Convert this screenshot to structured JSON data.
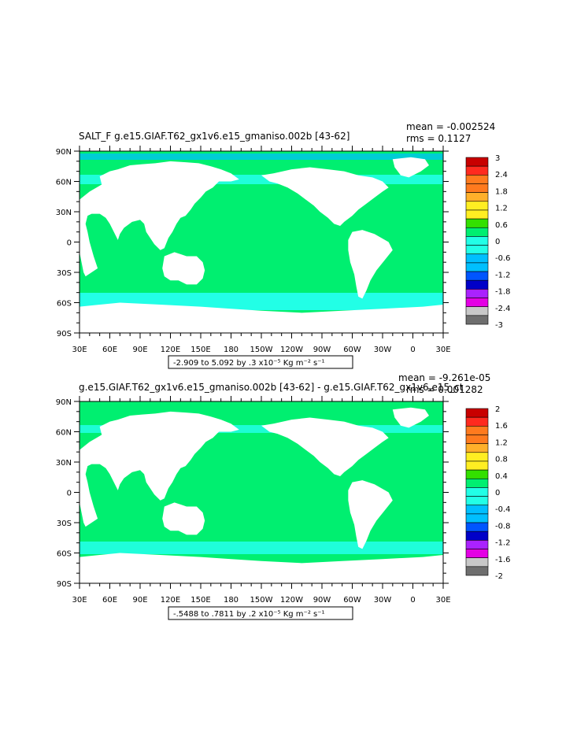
{
  "palette": {
    "c_pos3": "#c80000",
    "c_pos2": "#ff2a1f",
    "c_pos18": "#ff7a1e",
    "c_pos12": "#ffb02a",
    "c_pos06": "#ffee22",
    "c_pos0": "#33e000",
    "c_zero": "#00ef70",
    "c_neg06": "#22ffe6",
    "c_neg12": "#00bfff",
    "c_neg18": "#0055ff",
    "c_neg24": "#0000c8",
    "c_neg30": "#aa22ff",
    "c_neg36": "#e400e4",
    "c_gray": "#c8c8c8",
    "c_dark": "#6e6e6e",
    "land": "#ffffff"
  },
  "chart_data": [
    {
      "type": "heatmap",
      "title": "SALT_F  g.e15.GIAF.T62_gx1v6.e15_gmaniso.002b  [43-62]",
      "stats": [
        "mean = -0.002524",
        "rms = 0.1127"
      ],
      "xlabel": "",
      "ylabel": "",
      "xticks": [
        "30E",
        "60E",
        "90E",
        "120E",
        "150E",
        "180",
        "150W",
        "120W",
        "90W",
        "60W",
        "30W",
        "0",
        "30E"
      ],
      "yticks": [
        "90N",
        "60N",
        "30N",
        "0",
        "30S",
        "60S",
        "90S"
      ],
      "range_note": "-2.909 to 5.092 by .3 x10⁻⁵ Kg m⁻² s⁻¹",
      "colorbar_labels": [
        "3",
        "2.4",
        "1.8",
        "1.2",
        "0.6",
        "0",
        "-0.6",
        "-1.2",
        "-1.8",
        "-2.4",
        "-3"
      ],
      "ocean_base_value": 0
    },
    {
      "type": "heatmap",
      "title": "g.e15.GIAF.T62_gx1v6.e15_gmaniso.002b [43-62] - g.e15.GIAF.T62_gx1v6.e15_ct",
      "stats": [
        "mean = -9.261e-05",
        "rms = 0.001282"
      ],
      "xlabel": "",
      "ylabel": "",
      "xticks": [
        "30E",
        "60E",
        "90E",
        "120E",
        "150E",
        "180",
        "150W",
        "120W",
        "90W",
        "60W",
        "30W",
        "0",
        "30E"
      ],
      "yticks": [
        "90N",
        "60N",
        "30N",
        "0",
        "30S",
        "60S",
        "90S"
      ],
      "range_note": "-.5488 to .7811 by .2 x10⁻⁵ Kg m⁻² s⁻¹",
      "colorbar_labels": [
        "2",
        "1.6",
        "1.2",
        "0.8",
        "0.4",
        "0",
        "-0.4",
        "-0.8",
        "-1.2",
        "-1.6",
        "-2"
      ],
      "ocean_base_value": 0
    }
  ]
}
